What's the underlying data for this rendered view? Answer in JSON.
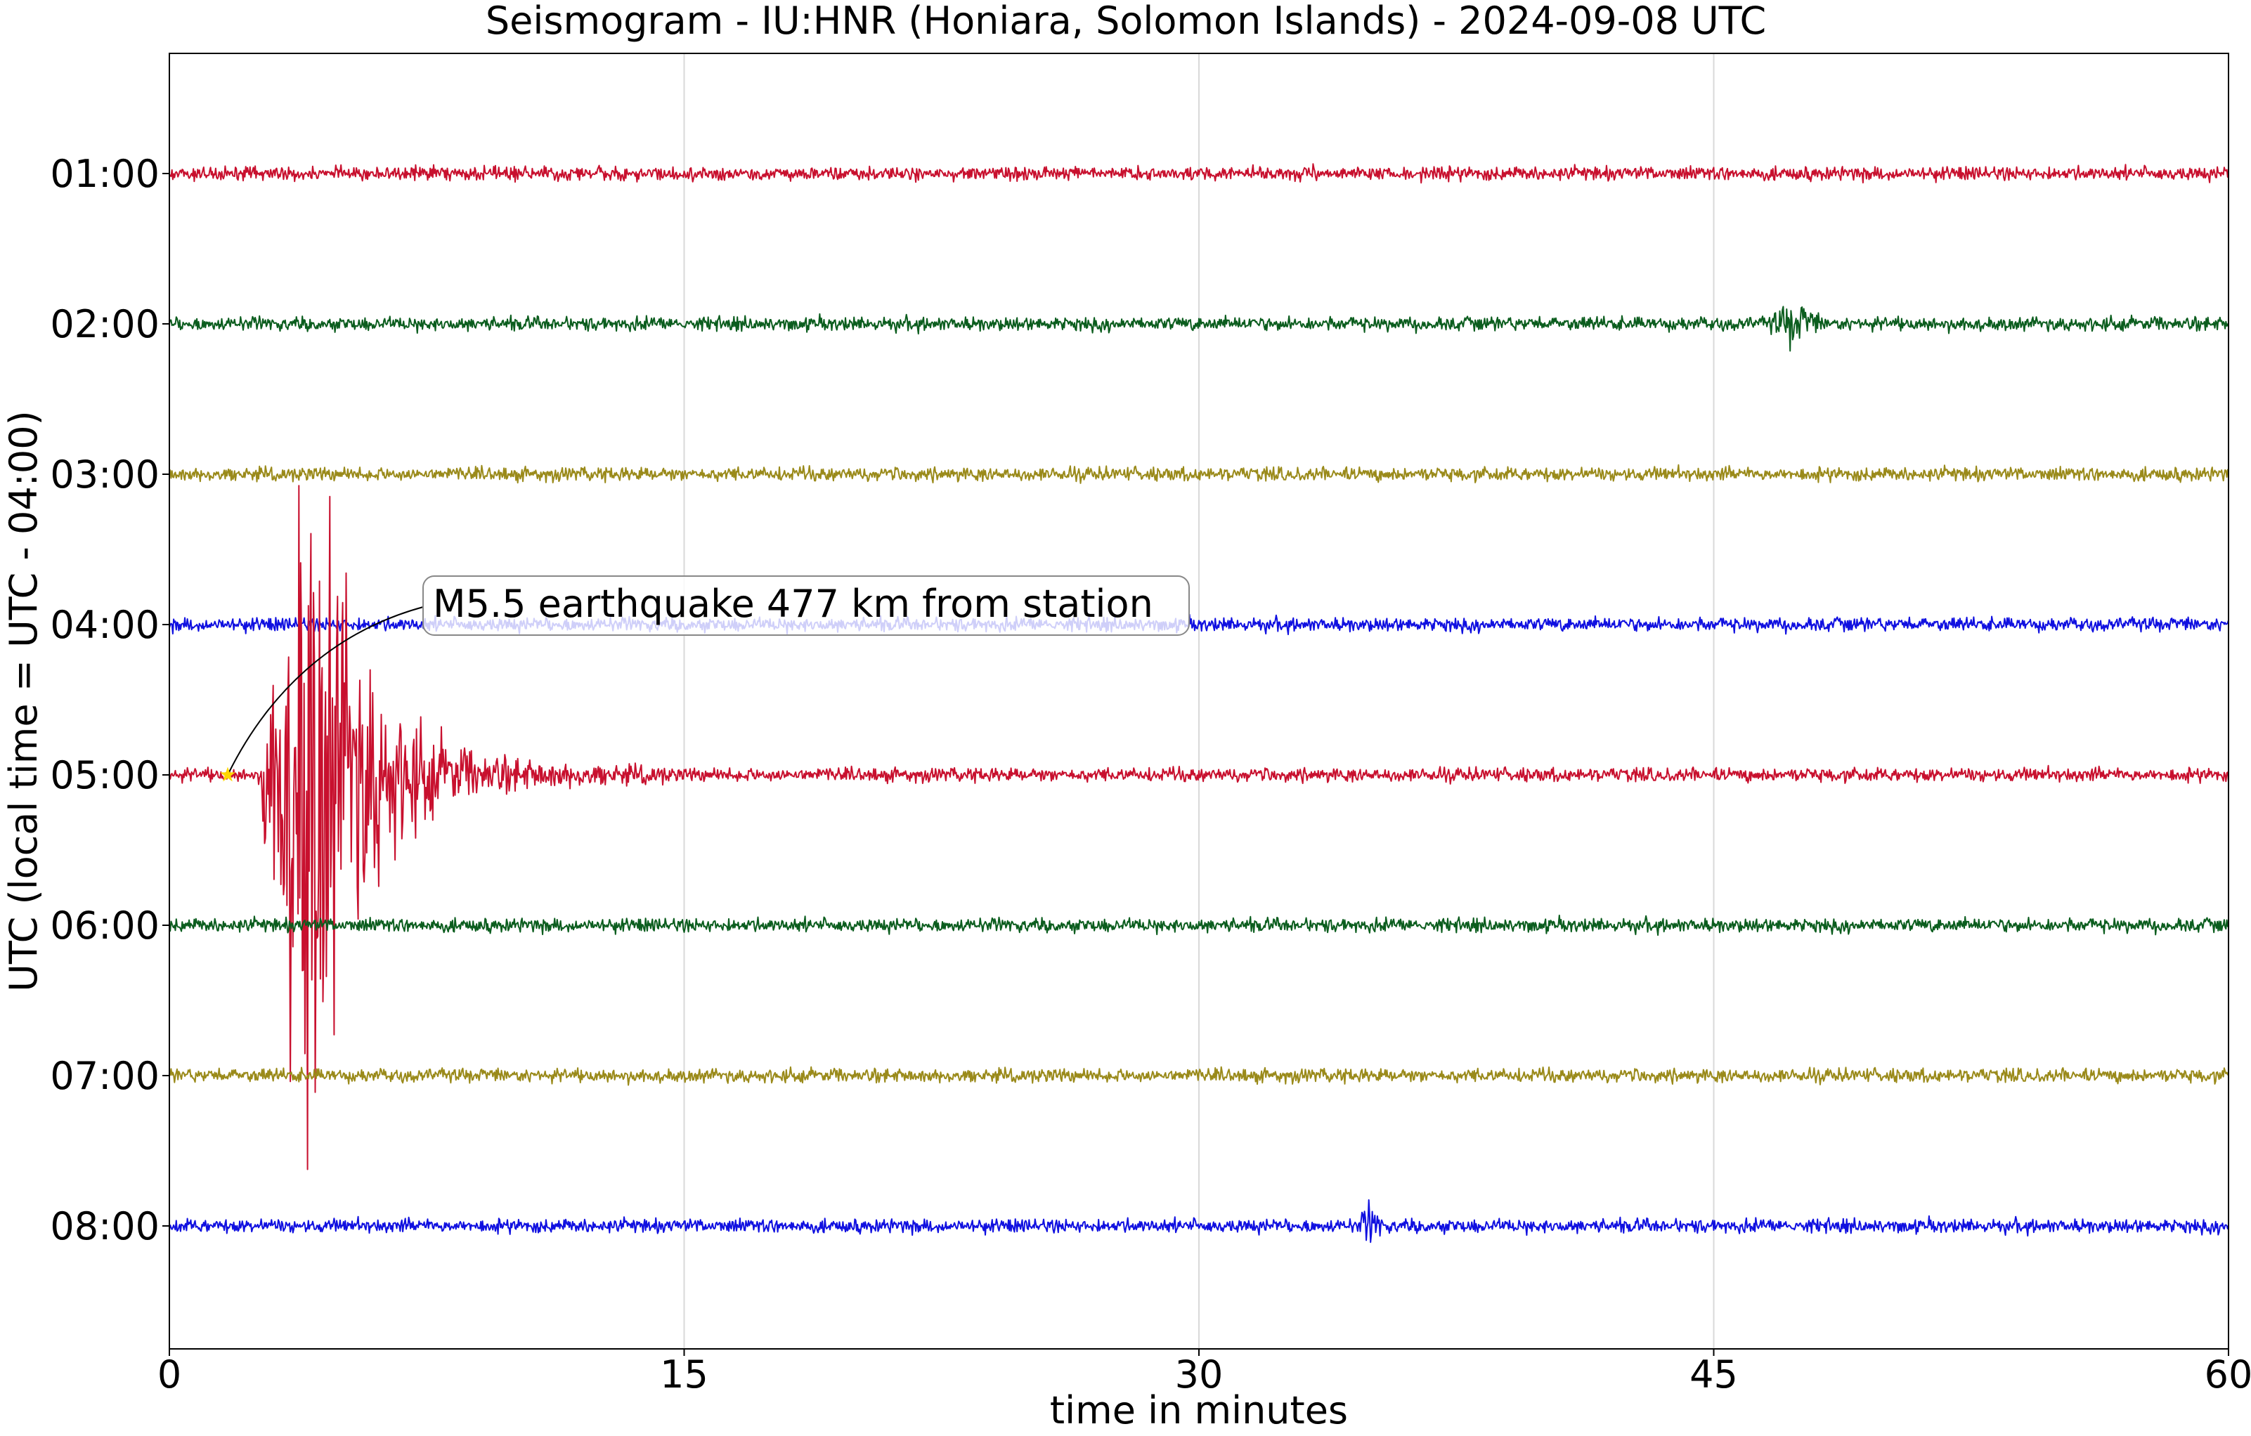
{
  "chart_data": {
    "type": "line",
    "title": "Seismogram - IU:HNR (Honiara, Solomon Islands) - 2024-09-08 UTC",
    "xlabel": "time in minutes",
    "ylabel": "UTC (local time = UTC - 04:00)",
    "xlim": [
      0,
      60
    ],
    "x_ticks": [
      "0",
      "15",
      "30",
      "45",
      "60"
    ],
    "x_tick_values": [
      0,
      15,
      30,
      45,
      60
    ],
    "grid": "vertical",
    "rows": [
      {
        "label": "01:00",
        "color": "#c8102e"
      },
      {
        "label": "02:00",
        "color": "#0b5d1e"
      },
      {
        "label": "03:00",
        "color": "#9a8a1a"
      },
      {
        "label": "04:00",
        "color": "#1010e0"
      },
      {
        "label": "05:00",
        "color": "#c8102e"
      },
      {
        "label": "06:00",
        "color": "#0b5d1e"
      },
      {
        "label": "07:00",
        "color": "#9a8a1a"
      },
      {
        "label": "08:00",
        "color": "#1010e0"
      }
    ],
    "events": [
      {
        "row": "05:00",
        "onset_min": 2.7,
        "peak_min": 3.9,
        "end_min": 14.5,
        "type": "earthquake"
      },
      {
        "row": "02:00",
        "onset_min": 46.5,
        "end_min": 48.2,
        "type": "small signal"
      },
      {
        "row": "08:00",
        "onset_min": 34.6,
        "end_min": 35.4,
        "type": "small signal"
      }
    ],
    "annotation": {
      "text": "M5.5 earthquake 477 km from station",
      "marker_row": "05:00",
      "marker_min": 1.7,
      "marker_color": "#ffd700"
    }
  }
}
